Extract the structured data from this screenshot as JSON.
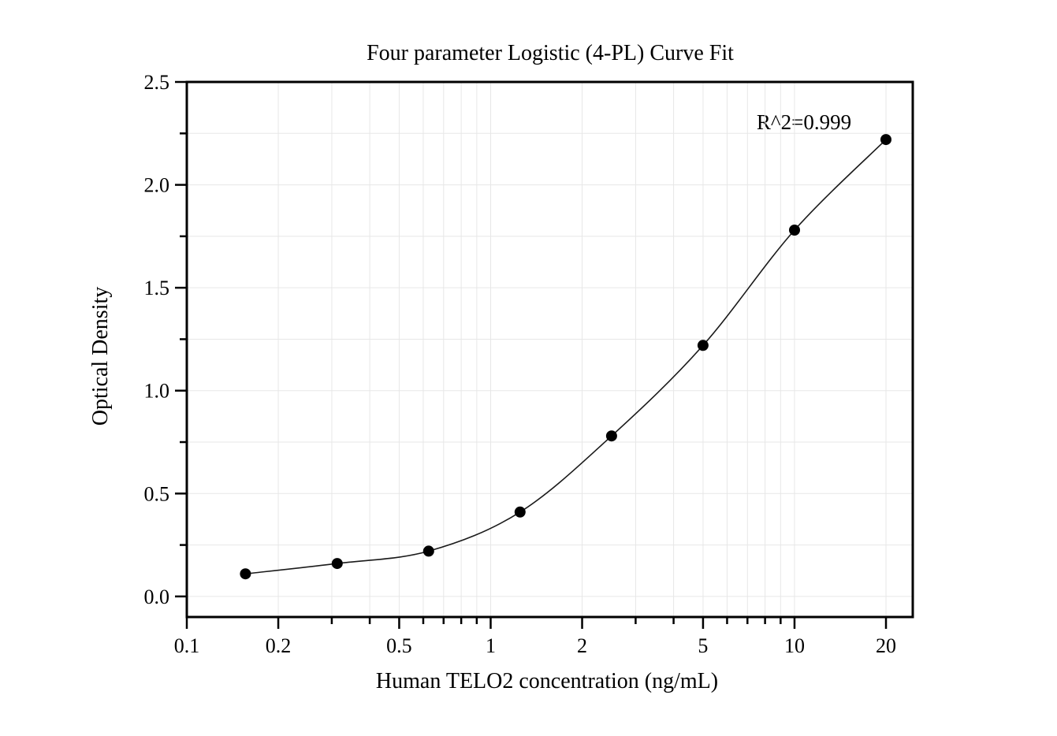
{
  "page": {
    "background_color": "#ffffff"
  },
  "chart_data": {
    "type": "scatter",
    "title": "Four parameter Logistic (4-PL) Curve Fit",
    "xlabel": "Human TELO2 concentration (ng/mL)",
    "ylabel": "Optical Density",
    "annotation": "R^2=0.999",
    "x_scale": "log",
    "y_scale": "linear",
    "x": [
      0.156,
      0.3125,
      0.625,
      1.25,
      2.5,
      5,
      10,
      20
    ],
    "y": [
      0.11,
      0.16,
      0.22,
      0.41,
      0.78,
      1.22,
      1.78,
      2.22
    ],
    "curve": "4-PL fit line through data points",
    "xlim": [
      0.1,
      24.5
    ],
    "ylim": [
      -0.1,
      2.5
    ],
    "x_major_ticks": [
      0.1,
      0.2,
      0.5,
      1,
      2,
      5,
      10,
      20
    ],
    "x_major_tick_labels": [
      "0.1",
      "0.2",
      "0.5",
      "1",
      "2",
      "5",
      "10",
      "20"
    ],
    "x_minor_ticks": [
      0.3,
      0.4,
      0.6,
      0.7,
      0.8,
      0.9,
      3,
      4,
      6,
      7,
      8,
      9
    ],
    "y_major_ticks": [
      0.0,
      0.5,
      1.0,
      1.5,
      2.0,
      2.5
    ],
    "y_major_tick_labels": [
      "0.0",
      "0.5",
      "1.0",
      "1.5",
      "2.0",
      "2.5"
    ],
    "y_minor_ticks": [
      0.25,
      0.75,
      1.25,
      1.75,
      2.25
    ],
    "grid": true,
    "legend": "none",
    "colors": {
      "point": "#000000",
      "curve": "#1a1a1a",
      "grid": "#e7e7e7",
      "axis": "#000000",
      "text": "#000000"
    }
  }
}
